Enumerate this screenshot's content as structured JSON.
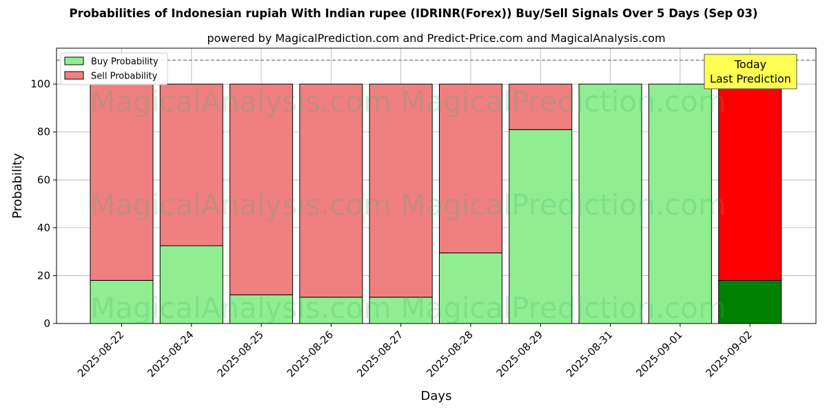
{
  "chart_data": {
    "type": "bar",
    "stacked": true,
    "title": "Probabilities of Indonesian rupiah With Indian rupee (IDRINR(Forex)) Buy/Sell Signals Over 5 Days (Sep 03)",
    "subtitle": "powered by MagicalPrediction.com and Predict-Price.com and MagicalAnalysis.com",
    "xlabel": "Days",
    "ylabel": "Probability",
    "ylim": [
      0,
      115
    ],
    "yticks": [
      0,
      20,
      40,
      60,
      80,
      100
    ],
    "reference_line": 110,
    "grid": true,
    "legend_position": "top-left",
    "categories": [
      "2025-08-22",
      "2025-08-24",
      "2025-08-25",
      "2025-08-26",
      "2025-08-27",
      "2025-08-28",
      "2025-08-29",
      "2025-08-31",
      "2025-09-01",
      "2025-09-02"
    ],
    "series": [
      {
        "name": "Buy Probability",
        "color": "#90ee90",
        "values": [
          18,
          32.5,
          12,
          11,
          11,
          29.5,
          81,
          100,
          100,
          18
        ]
      },
      {
        "name": "Sell Probability",
        "color": "#f08080",
        "values": [
          82,
          67.5,
          88,
          89,
          89,
          70.5,
          19,
          0,
          0,
          82
        ]
      }
    ],
    "highlight": {
      "index": 9,
      "buy_color": "#008000",
      "sell_color": "#ff0000"
    },
    "annotation": {
      "lines": [
        "Today",
        "Last Prediction"
      ],
      "color": "#ffff54"
    },
    "watermark": "MagicalAnalysis.com   MagicalPrediction.com"
  }
}
